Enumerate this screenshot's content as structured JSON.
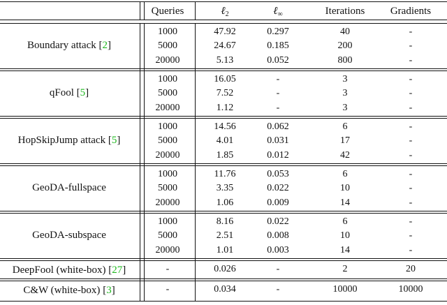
{
  "headers": [
    "",
    "Queries",
    "ℓ2",
    "ℓ∞",
    "Iterations",
    "Gradients"
  ],
  "groups": [
    {
      "name": "Boundary attack",
      "ref": "2",
      "rows": [
        [
          "1000",
          "47.92",
          "0.297",
          "40",
          "-"
        ],
        [
          "5000",
          "24.67",
          "0.185",
          "200",
          "-"
        ],
        [
          "20000",
          "5.13",
          "0.052",
          "800",
          "-"
        ]
      ]
    },
    {
      "name": "qFool",
      "ref": "5",
      "rows": [
        [
          "1000",
          "16.05",
          "-",
          "3",
          "-"
        ],
        [
          "5000",
          "7.52",
          "-",
          "3",
          "-"
        ],
        [
          "20000",
          "1.12",
          "-",
          "3",
          "-"
        ]
      ]
    },
    {
      "name": "HopSkipJump attack",
      "ref": "5",
      "rows": [
        [
          "1000",
          "14.56",
          "0.062",
          "6",
          "-"
        ],
        [
          "5000",
          "4.01",
          "0.031",
          "17",
          "-"
        ],
        [
          "20000",
          "1.85",
          "0.012",
          "42",
          "-"
        ]
      ]
    },
    {
      "name": "GeoDA-fullspace",
      "ref": "",
      "rows": [
        [
          "1000",
          "11.76",
          "0.053",
          "6",
          "-"
        ],
        [
          "5000",
          "3.35",
          "0.022",
          "10",
          "-"
        ],
        [
          "20000",
          "1.06",
          "0.009",
          "14",
          "-"
        ]
      ]
    },
    {
      "name": "GeoDA-subspace",
      "ref": "",
      "rows": [
        [
          "1000",
          "8.16",
          "0.022",
          "6",
          "-"
        ],
        [
          "5000",
          "2.51",
          "0.008",
          "10",
          "-"
        ],
        [
          "20000",
          "1.01",
          "0.003",
          "14",
          "-"
        ]
      ]
    }
  ],
  "singles": [
    {
      "name": "DeepFool (white-box)",
      "ref": "27",
      "row": [
        "-",
        "0.026",
        "-",
        "2",
        "20"
      ]
    },
    {
      "name": "C&W (white-box)",
      "ref": "3",
      "row": [
        "-",
        "0.034",
        "-",
        "10000",
        "10000"
      ]
    }
  ],
  "colors": {
    "text": "#111111",
    "ref": "#1fb81f",
    "rule": "#111111"
  }
}
